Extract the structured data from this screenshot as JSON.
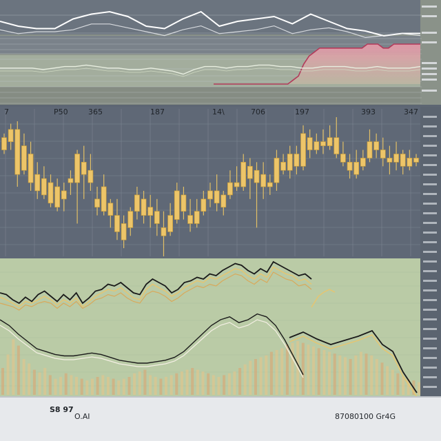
{
  "chart_data": [
    {
      "type": "line",
      "title": "",
      "series": [
        {
          "x": [
            0,
            1,
            2,
            3,
            4,
            5,
            6,
            7,
            8,
            9,
            10,
            11,
            12,
            13,
            14,
            15,
            16,
            17,
            18,
            19,
            20,
            21,
            22,
            23
          ],
          "values": [
            96,
            94,
            93,
            93,
            97,
            99,
            100,
            98,
            94,
            93,
            97,
            100,
            94,
            96,
            97,
            98,
            95,
            99,
            96,
            93,
            92,
            90,
            91,
            91
          ]
        },
        {
          "x": [
            0,
            1,
            2,
            3,
            4,
            5,
            6,
            7,
            8,
            9,
            10,
            11,
            12,
            13,
            14,
            15,
            16,
            17,
            18,
            19,
            20,
            21,
            22,
            23
          ],
          "values": [
            96,
            94,
            95,
            95,
            96,
            99,
            99,
            97,
            95,
            93,
            96,
            98,
            94,
            95,
            96,
            98,
            94,
            96,
            97,
            95,
            92,
            93,
            94,
            93
          ]
        }
      ]
    },
    {
      "type": "area",
      "title": "",
      "values": [
        0,
        0,
        0,
        0,
        0,
        0,
        0,
        0,
        0,
        0,
        0,
        0,
        0,
        0,
        0,
        1,
        2,
        5,
        7,
        8,
        9,
        9,
        9,
        9,
        9,
        9,
        9,
        9,
        9,
        10,
        10,
        10,
        9,
        9,
        10,
        10,
        10,
        10,
        10,
        10
      ]
    },
    {
      "type": "line",
      "title": "",
      "values": [
        6,
        6,
        6,
        6,
        5,
        6,
        7,
        7,
        8,
        7,
        6,
        6,
        5,
        5,
        6,
        5,
        4,
        2,
        5,
        7,
        7,
        6,
        7,
        7,
        8,
        8,
        7,
        7,
        6,
        6,
        7,
        7,
        7,
        6,
        6,
        7,
        6,
        6,
        6,
        7
      ]
    },
    {
      "type": "candlestick",
      "title": "",
      "tick_labels": [
        "7",
        "P50",
        "365",
        "187",
        "14\\",
        "706",
        "197",
        "393",
        "347"
      ],
      "values": [
        {
          "o": 190,
          "c": 205,
          "h": 210,
          "l": 185
        },
        {
          "o": 200,
          "c": 215,
          "h": 222,
          "l": 190
        },
        {
          "o": 215,
          "c": 160,
          "h": 225,
          "l": 145
        },
        {
          "o": 165,
          "c": 195,
          "h": 210,
          "l": 160
        },
        {
          "o": 185,
          "c": 150,
          "h": 200,
          "l": 140
        },
        {
          "o": 160,
          "c": 140,
          "h": 175,
          "l": 130
        },
        {
          "o": 135,
          "c": 155,
          "h": 170,
          "l": 130
        },
        {
          "o": 150,
          "c": 125,
          "h": 160,
          "l": 120
        },
        {
          "o": 120,
          "c": 145,
          "h": 155,
          "l": 115
        },
        {
          "o": 140,
          "c": 130,
          "h": 150,
          "l": 115
        },
        {
          "o": 150,
          "c": 155,
          "h": 165,
          "l": 135
        },
        {
          "o": 150,
          "c": 185,
          "h": 190,
          "l": 100
        },
        {
          "o": 175,
          "c": 160,
          "h": 195,
          "l": 130
        },
        {
          "o": 165,
          "c": 150,
          "h": 185,
          "l": 140
        },
        {
          "o": 130,
          "c": 120,
          "h": 145,
          "l": 110
        },
        {
          "o": 115,
          "c": 145,
          "h": 160,
          "l": 110
        },
        {
          "o": 125,
          "c": 110,
          "h": 130,
          "l": 95
        },
        {
          "o": 110,
          "c": 90,
          "h": 130,
          "l": 80
        },
        {
          "o": 80,
          "c": 100,
          "h": 110,
          "l": 70
        },
        {
          "o": 95,
          "c": 115,
          "h": 120,
          "l": 85
        },
        {
          "o": 115,
          "c": 135,
          "h": 145,
          "l": 105
        },
        {
          "o": 130,
          "c": 110,
          "h": 140,
          "l": 100
        },
        {
          "o": 110,
          "c": 120,
          "h": 135,
          "l": 95
        },
        {
          "o": 115,
          "c": 100,
          "h": 130,
          "l": 85
        },
        {
          "o": 95,
          "c": 85,
          "h": 115,
          "l": 60
        },
        {
          "o": 90,
          "c": 110,
          "h": 125,
          "l": 85
        },
        {
          "o": 105,
          "c": 140,
          "h": 150,
          "l": 100
        },
        {
          "o": 135,
          "c": 115,
          "h": 145,
          "l": 105
        },
        {
          "o": 110,
          "c": 100,
          "h": 130,
          "l": 90
        },
        {
          "o": 100,
          "c": 115,
          "h": 130,
          "l": 95
        },
        {
          "o": 115,
          "c": 130,
          "h": 140,
          "l": 110
        },
        {
          "o": 130,
          "c": 140,
          "h": 150,
          "l": 120
        },
        {
          "o": 140,
          "c": 125,
          "h": 160,
          "l": 115
        },
        {
          "o": 120,
          "c": 135,
          "h": 140,
          "l": 110
        },
        {
          "o": 135,
          "c": 150,
          "h": 165,
          "l": 130
        },
        {
          "o": 150,
          "c": 145,
          "h": 170,
          "l": 140
        },
        {
          "o": 145,
          "c": 175,
          "h": 185,
          "l": 140
        },
        {
          "o": 170,
          "c": 155,
          "h": 180,
          "l": 130
        },
        {
          "o": 150,
          "c": 165,
          "h": 175,
          "l": 95
        },
        {
          "o": 160,
          "c": 145,
          "h": 175,
          "l": 130
        },
        {
          "o": 145,
          "c": 150,
          "h": 160,
          "l": 135
        },
        {
          "o": 150,
          "c": 180,
          "h": 190,
          "l": 140
        },
        {
          "o": 175,
          "c": 165,
          "h": 185,
          "l": 160
        },
        {
          "o": 165,
          "c": 185,
          "h": 195,
          "l": 155
        },
        {
          "o": 185,
          "c": 170,
          "h": 195,
          "l": 160
        },
        {
          "o": 170,
          "c": 210,
          "h": 220,
          "l": 165
        },
        {
          "o": 205,
          "c": 190,
          "h": 215,
          "l": 180
        },
        {
          "o": 190,
          "c": 200,
          "h": 210,
          "l": 185
        },
        {
          "o": 200,
          "c": 195,
          "h": 215,
          "l": 185
        },
        {
          "o": 195,
          "c": 205,
          "h": 220,
          "l": 190
        },
        {
          "o": 205,
          "c": 185,
          "h": 230,
          "l": 180
        },
        {
          "o": 185,
          "c": 175,
          "h": 200,
          "l": 170
        },
        {
          "o": 175,
          "c": 165,
          "h": 185,
          "l": 155
        },
        {
          "o": 160,
          "c": 175,
          "h": 190,
          "l": 155
        },
        {
          "o": 170,
          "c": 180,
          "h": 190,
          "l": 165
        },
        {
          "o": 180,
          "c": 200,
          "h": 215,
          "l": 175
        },
        {
          "o": 200,
          "c": 190,
          "h": 210,
          "l": 180
        },
        {
          "o": 190,
          "c": 180,
          "h": 205,
          "l": 170
        },
        {
          "o": 180,
          "c": 175,
          "h": 195,
          "l": 160
        },
        {
          "o": 175,
          "c": 185,
          "h": 200,
          "l": 165
        },
        {
          "o": 185,
          "c": 170,
          "h": 190,
          "l": 160
        },
        {
          "o": 170,
          "c": 180,
          "h": 190,
          "l": 165
        },
        {
          "o": 180,
          "c": 175,
          "h": 185,
          "l": 170
        }
      ]
    },
    {
      "type": "line",
      "title": "",
      "series": [
        {
          "values": [
            60,
            58,
            52,
            48,
            55,
            50,
            58,
            62,
            56,
            50,
            58,
            52,
            60,
            48,
            54,
            62,
            64,
            70,
            68,
            72,
            66,
            60,
            58,
            70,
            76,
            72,
            68,
            60,
            64,
            72,
            74,
            78,
            76,
            82,
            80,
            86,
            90,
            94,
            92,
            86,
            82,
            88,
            84,
            96,
            92,
            88,
            84,
            80,
            82,
            76
          ]
        },
        {
          "values": [
            55,
            52,
            48,
            44,
            50,
            48,
            52,
            56,
            52,
            46,
            52,
            48,
            54,
            44,
            50,
            56,
            60,
            64,
            62,
            66,
            60,
            54,
            52,
            64,
            70,
            66,
            62,
            56,
            60,
            66,
            70,
            74,
            72,
            78,
            76,
            80,
            84,
            88,
            86,
            80,
            76,
            82,
            78,
            90,
            86,
            82,
            80,
            74,
            76,
            70
          ]
        },
        {
          "values": [
            48,
            46,
            44,
            40,
            46,
            44,
            48,
            50,
            48,
            42,
            48,
            44,
            50,
            42,
            46,
            52,
            54,
            58,
            56,
            60,
            54,
            50,
            48,
            58,
            62,
            60,
            56,
            50,
            54,
            60,
            64,
            68,
            66,
            70,
            68,
            74,
            78,
            82,
            80,
            74,
            70,
            76,
            72,
            84,
            80,
            76,
            74,
            68,
            70,
            64
          ]
        }
      ],
      "lower_line": [
        40,
        36,
        30,
        25,
        20,
        18,
        16,
        15,
        15,
        16,
        17,
        16,
        14,
        12,
        11,
        10,
        10,
        11,
        12,
        14,
        18,
        24,
        30,
        36,
        40,
        42,
        38,
        40,
        44,
        42,
        36,
        26,
        14,
        2
      ]
    },
    {
      "type": "bar",
      "title": "",
      "values": [
        30,
        45,
        62,
        55,
        40,
        35,
        28,
        25,
        30,
        22,
        18,
        20,
        24,
        22,
        20,
        18,
        16,
        18,
        20,
        22,
        20,
        18,
        16,
        18,
        20,
        24,
        26,
        28,
        22,
        20,
        18,
        20,
        22,
        24,
        26,
        28,
        30,
        28,
        26,
        24,
        22,
        20,
        22,
        24,
        26,
        30,
        34,
        38,
        40,
        42,
        44,
        48,
        50,
        52,
        56,
        58,
        60,
        58,
        56,
        54,
        52,
        50,
        48,
        46,
        44,
        42,
        40,
        44,
        48,
        46,
        44,
        40,
        36,
        32,
        28,
        24,
        20,
        18,
        16,
        14
      ]
    }
  ],
  "labels": {
    "bottom_left": "S8 97",
    "bottom_left_sub": "O.AI",
    "bottom_right": "87080100 Gr4G"
  }
}
